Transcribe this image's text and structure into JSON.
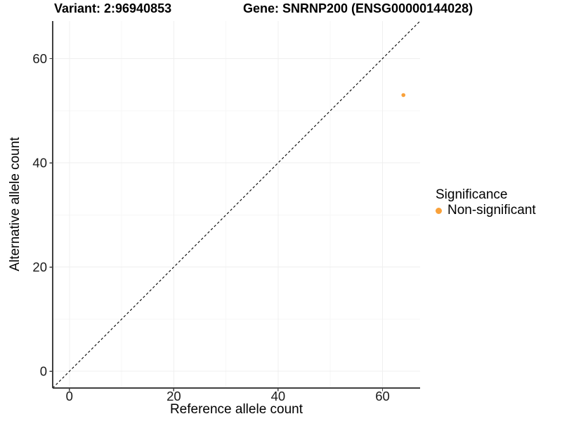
{
  "chart_data": {
    "type": "scatter",
    "title_variant": "Variant: 2:96940853",
    "title_gene": "Gene: SNRNP200 (ENSG00000144028)",
    "xlabel": "Reference allele count",
    "ylabel": "Alternative allele count",
    "xlim": [
      -3.2,
      67.2
    ],
    "ylim": [
      -3.2,
      67.2
    ],
    "x_ticks": [
      0,
      20,
      40,
      60
    ],
    "y_ticks": [
      0,
      20,
      40,
      60
    ],
    "x_minor_ticks": [
      10,
      30,
      50
    ],
    "y_minor_ticks": [
      10,
      30,
      50
    ],
    "grid": true,
    "reference_line": {
      "type": "identity",
      "style": "dashed",
      "color": "#000000"
    },
    "series": [
      {
        "name": "Non-significant",
        "color": "#F9A13A",
        "points": [
          {
            "x": 64,
            "y": 53
          }
        ]
      }
    ],
    "legend": {
      "position": "right",
      "title": "Significance",
      "items": [
        {
          "label": "Non-significant",
          "color": "#F9A13A",
          "marker": "circle"
        }
      ]
    },
    "colors": {
      "background": "#FFFFFF",
      "grid_major": "#EFEFEF",
      "grid_minor": "#F7F7F7",
      "axis_line": "#3F3F3F",
      "tick_label": "#1A1A1A"
    }
  }
}
